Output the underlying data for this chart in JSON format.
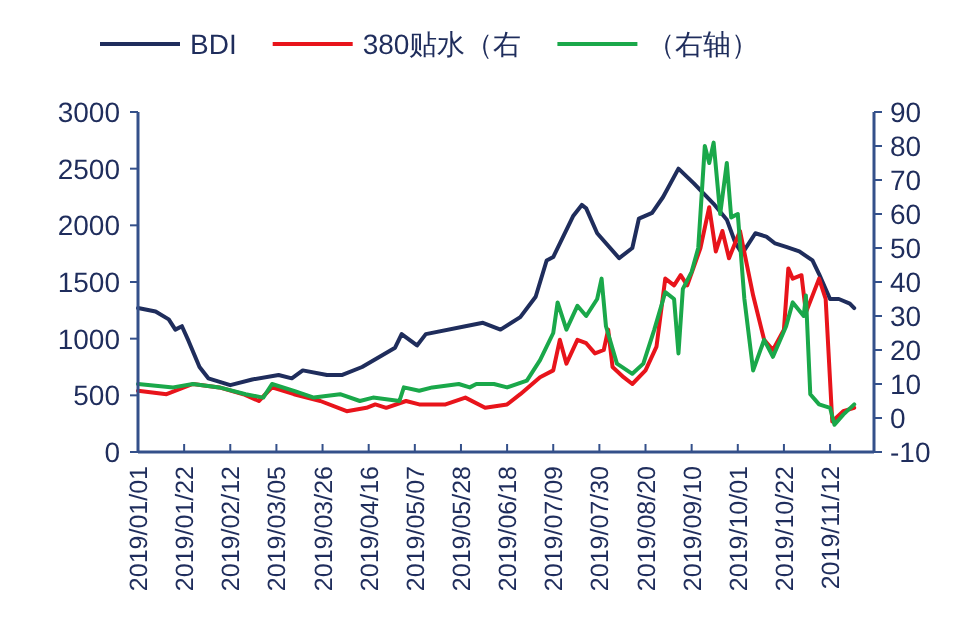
{
  "chart_data": {
    "type": "line",
    "legend": "top",
    "grid": false,
    "line_style": "solid",
    "marker": "none",
    "xlim": [
      "2019-01-01",
      "2019-12-02"
    ],
    "xticks": [
      {
        "value": "2019-01-01",
        "label": "2019/01/01"
      },
      {
        "value": "2019-01-22",
        "label": "2019/01/22"
      },
      {
        "value": "2019-02-12",
        "label": "2019/02/12"
      },
      {
        "value": "2019-03-05",
        "label": "2019/03/05"
      },
      {
        "value": "2019-03-26",
        "label": "2019/03/26"
      },
      {
        "value": "2019-04-16",
        "label": "2019/04/16"
      },
      {
        "value": "2019-05-07",
        "label": "2019/05/07"
      },
      {
        "value": "2019-05-28",
        "label": "2019/05/28"
      },
      {
        "value": "2019-06-18",
        "label": "2019/06/18"
      },
      {
        "value": "2019-07-09",
        "label": "2019/07/09"
      },
      {
        "value": "2019-07-30",
        "label": "2019/07/30"
      },
      {
        "value": "2019-08-20",
        "label": "2019/08/20"
      },
      {
        "value": "2019-09-10",
        "label": "2019/09/10"
      },
      {
        "value": "2019-10-01",
        "label": "2019/10/01"
      },
      {
        "value": "2019-10-22",
        "label": "2019/10/22"
      },
      {
        "value": "2019-11-12",
        "label": "2019/11/12"
      }
    ],
    "ylim": [
      0,
      3000
    ],
    "yticks": [
      0,
      500,
      1000,
      1500,
      2000,
      2500,
      3000
    ],
    "y2lim": [
      -10,
      90
    ],
    "y2ticks": [
      -10,
      0,
      10,
      20,
      30,
      40,
      50,
      60,
      70,
      80,
      90
    ],
    "series": [
      {
        "name": "BDI",
        "color": "#1f2d5c",
        "x": [
          "2019-01-01",
          "2019-01-09",
          "2019-01-15",
          "2019-01-18",
          "2019-01-21",
          "2019-01-24",
          "2019-01-29",
          "2019-02-02",
          "2019-02-12",
          "2019-02-22",
          "2019-03-06",
          "2019-03-12",
          "2019-03-17",
          "2019-03-28",
          "2019-04-04",
          "2019-04-13",
          "2019-04-21",
          "2019-04-28",
          "2019-05-01",
          "2019-05-08",
          "2019-05-12",
          "2019-05-30",
          "2019-06-07",
          "2019-06-15",
          "2019-06-24",
          "2019-07-01",
          "2019-07-06",
          "2019-07-09",
          "2019-07-18",
          "2019-07-22",
          "2019-07-24",
          "2019-07-29",
          "2019-08-08",
          "2019-08-14",
          "2019-08-17",
          "2019-08-23",
          "2019-08-28",
          "2019-09-04",
          "2019-09-11",
          "2019-09-20",
          "2019-09-26",
          "2019-09-30",
          "2019-10-03",
          "2019-10-09",
          "2019-10-14",
          "2019-10-18",
          "2019-10-23",
          "2019-10-29",
          "2019-11-04",
          "2019-11-07",
          "2019-11-12",
          "2019-11-16",
          "2019-11-21",
          "2019-11-23"
        ],
        "values": [
          1270,
          1240,
          1170,
          1080,
          1110,
          980,
          750,
          650,
          590,
          640,
          680,
          650,
          720,
          680,
          680,
          750,
          840,
          920,
          1040,
          940,
          1040,
          1110,
          1140,
          1080,
          1190,
          1370,
          1690,
          1720,
          2080,
          2180,
          2150,
          1930,
          1710,
          1800,
          2060,
          2110,
          2250,
          2500,
          2370,
          2190,
          2050,
          1840,
          1750,
          1930,
          1900,
          1840,
          1810,
          1770,
          1690,
          1570,
          1350,
          1350,
          1310,
          1270
        ]
      },
      {
        "name": "380贴水（右",
        "color": "#e8141b",
        "axis": "y2",
        "x": [
          "2019-01-01",
          "2019-01-14",
          "2019-01-26",
          "2019-02-07",
          "2019-02-18",
          "2019-02-25",
          "2019-03-03",
          "2019-03-13",
          "2019-03-25",
          "2019-04-06",
          "2019-04-15",
          "2019-04-19",
          "2019-04-24",
          "2019-05-03",
          "2019-05-09",
          "2019-05-21",
          "2019-05-30",
          "2019-06-08",
          "2019-06-18",
          "2019-06-24",
          "2019-07-03",
          "2019-07-09",
          "2019-07-12",
          "2019-07-15",
          "2019-07-20",
          "2019-07-24",
          "2019-07-28",
          "2019-08-01",
          "2019-08-03",
          "2019-08-05",
          "2019-08-10",
          "2019-08-14",
          "2019-08-20",
          "2019-08-25",
          "2019-08-29",
          "2019-09-02",
          "2019-09-05",
          "2019-09-08",
          "2019-09-14",
          "2019-09-18",
          "2019-09-21",
          "2019-09-24",
          "2019-09-27",
          "2019-10-02",
          "2019-10-08",
          "2019-10-13",
          "2019-10-17",
          "2019-10-22",
          "2019-10-24",
          "2019-10-26",
          "2019-10-30",
          "2019-11-01",
          "2019-11-07",
          "2019-11-10",
          "2019-11-13",
          "2019-11-18",
          "2019-11-23"
        ],
        "values": [
          8,
          7,
          10,
          9,
          7,
          5,
          9,
          7,
          5,
          2,
          3,
          4,
          3,
          5,
          4,
          4,
          6,
          3,
          4,
          7,
          12,
          14,
          23,
          16,
          23,
          22,
          19,
          20,
          26,
          15,
          12,
          10,
          14,
          21,
          41,
          39,
          42,
          39,
          50,
          62,
          49,
          55,
          47,
          55,
          36,
          23,
          20,
          26,
          44,
          41,
          42,
          31,
          41,
          35,
          -1,
          2,
          3
        ]
      },
      {
        "name": "（右轴）",
        "color": "#1aa84a",
        "axis": "y2",
        "x": [
          "2019-01-01",
          "2019-01-17",
          "2019-01-26",
          "2019-02-07",
          "2019-02-19",
          "2019-02-27",
          "2019-03-03",
          "2019-03-13",
          "2019-03-22",
          "2019-04-03",
          "2019-04-12",
          "2019-04-18",
          "2019-04-30",
          "2019-05-02",
          "2019-05-09",
          "2019-05-15",
          "2019-05-27",
          "2019-06-01",
          "2019-06-04",
          "2019-06-12",
          "2019-06-18",
          "2019-06-27",
          "2019-07-03",
          "2019-07-09",
          "2019-07-11",
          "2019-07-15",
          "2019-07-20",
          "2019-07-24",
          "2019-07-29",
          "2019-07-31",
          "2019-08-02",
          "2019-08-07",
          "2019-08-14",
          "2019-08-19",
          "2019-08-24",
          "2019-08-29",
          "2019-09-02",
          "2019-09-04",
          "2019-09-06",
          "2019-09-10",
          "2019-09-13",
          "2019-09-16",
          "2019-09-18",
          "2019-09-20",
          "2019-09-23",
          "2019-09-26",
          "2019-09-28",
          "2019-10-01",
          "2019-10-04",
          "2019-10-08",
          "2019-10-13",
          "2019-10-17",
          "2019-10-23",
          "2019-10-26",
          "2019-10-31",
          "2019-11-01",
          "2019-11-03",
          "2019-11-07",
          "2019-11-12",
          "2019-11-14",
          "2019-11-18",
          "2019-11-23"
        ],
        "values": [
          10,
          9,
          10,
          9,
          7,
          6,
          10,
          8,
          6,
          7,
          5,
          6,
          5,
          9,
          8,
          9,
          10,
          9,
          10,
          10,
          9,
          11,
          17,
          25,
          34,
          26,
          33,
          30,
          35,
          41,
          27,
          16,
          13,
          16,
          26,
          37,
          35,
          19,
          38,
          43,
          50,
          80,
          75,
          81,
          60,
          75,
          59,
          60,
          35,
          14,
          23,
          18,
          27,
          34,
          30,
          36,
          7,
          4,
          3,
          -2,
          1,
          4
        ]
      }
    ]
  }
}
